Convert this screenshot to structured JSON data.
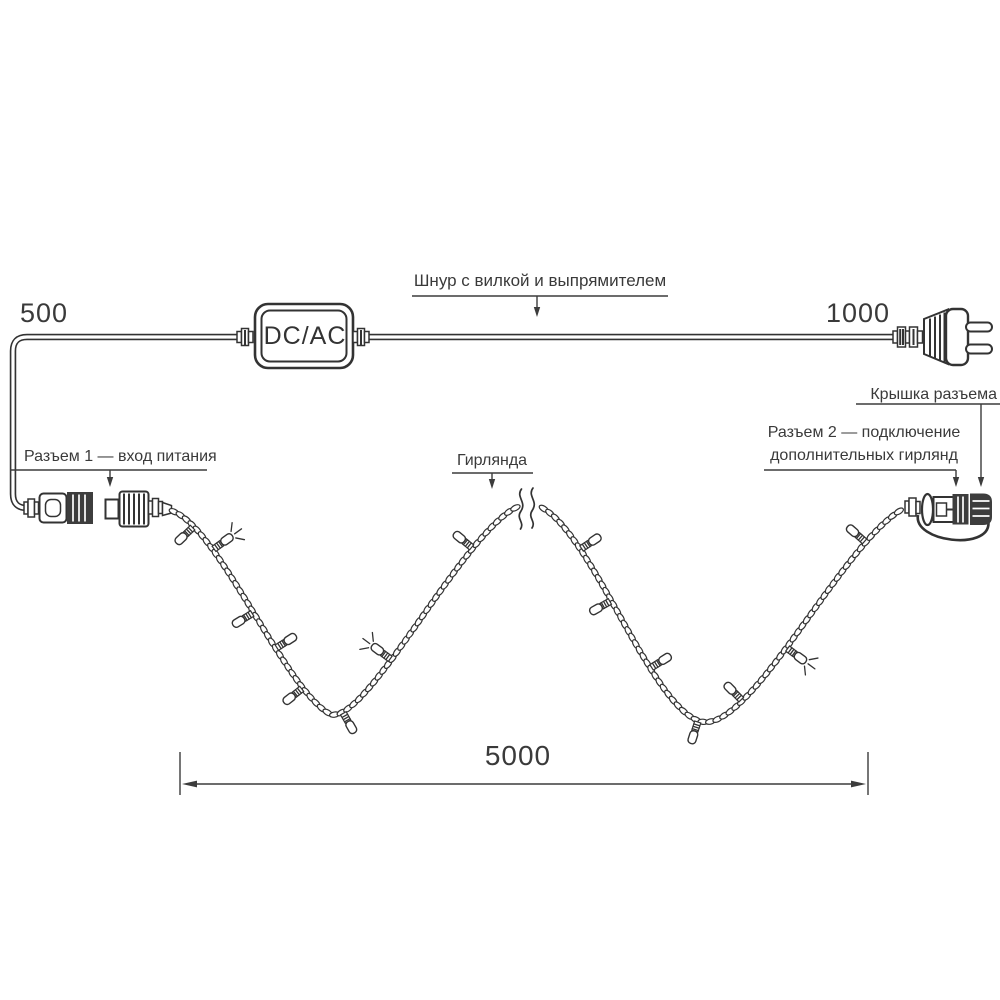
{
  "adapter": {
    "label": "DC/AC"
  },
  "dimensions": {
    "cord_left": "500",
    "cord_right": "1000",
    "garland": "5000"
  },
  "labels": {
    "cord": "Шнур с вилкой и выпрямителем",
    "connector1": "Разъем 1 — вход питания",
    "garland": "Гирлянда",
    "connector2_line1": "Разъем 2 — подключение",
    "connector2_line2": "дополнительных гирлянд",
    "cap": "Крышка разъема"
  },
  "colors": {
    "line": "#333333",
    "text": "#3a3a3a",
    "background": "#ffffff"
  }
}
